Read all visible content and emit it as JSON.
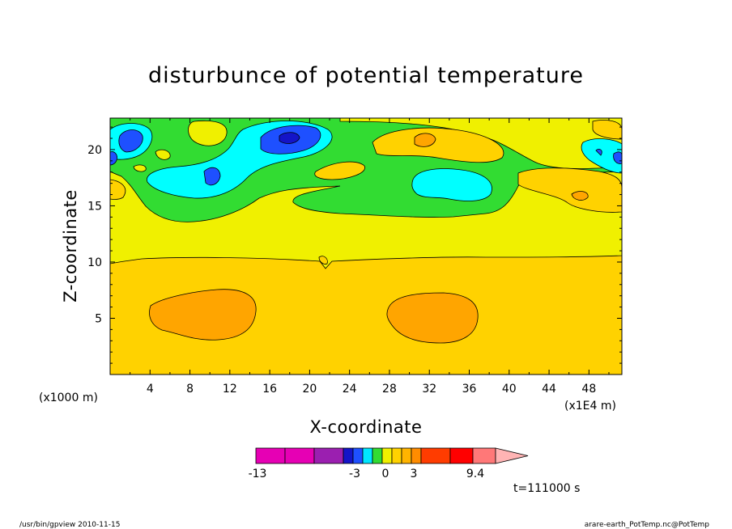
{
  "chart_data": {
    "type": "heatmap",
    "title": "disturbunce of potential temperature",
    "xlabel": "X-coordinate",
    "ylabel": "Z-coordinate",
    "x_unit_label": "(x1E4 m)",
    "y_unit_label": "(x1000 m)",
    "xlim": [
      0,
      51.3
    ],
    "ylim": [
      0,
      22.8
    ],
    "x_ticks": [
      4,
      8,
      12,
      16,
      20,
      24,
      28,
      32,
      36,
      40,
      44,
      48
    ],
    "y_ticks": [
      5,
      10,
      15,
      20
    ],
    "time_label": "t=111000 s",
    "colorbar": {
      "min_label": "-13",
      "max_label": "9.4",
      "tick_labels": [
        "-3",
        "0",
        "3"
      ],
      "colors": [
        "#e600b4",
        "#e600b4",
        "#9b1fb0",
        "#1414c8",
        "#1e50ff",
        "#00e6ff",
        "#32dc32",
        "#f0f000",
        "#ffd200",
        "#ffb400",
        "#ff8c00",
        "#ff3c00",
        "#ff0000",
        "#ff7878",
        "#ffb4b4"
      ]
    },
    "levels": [
      {
        "name": "below 0",
        "color": "#32dc32"
      },
      {
        "name": "0 to 1",
        "color": "#f0f000"
      },
      {
        "name": "1 to 2",
        "color": "#ffd200"
      },
      {
        "name": "2 to 3",
        "color": "#ffa500"
      },
      {
        "name": "-1 to 0",
        "color": "#00ffff"
      },
      {
        "name": "-2 to -1",
        "color": "#1e50ff"
      },
      {
        "name": "below -2",
        "color": "#1414c8"
      }
    ]
  },
  "footer": {
    "left": "/usr/bin/gpview   2010-11-15",
    "right": "arare-earth_PotTemp.nc@PotTemp"
  }
}
